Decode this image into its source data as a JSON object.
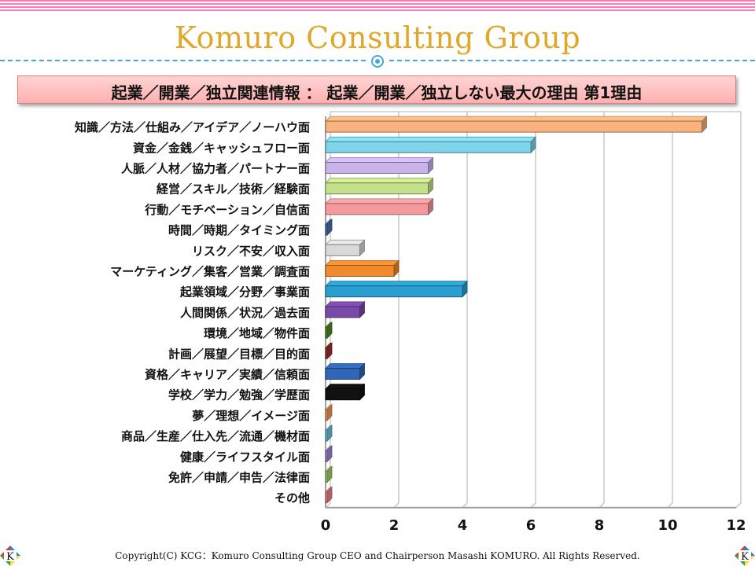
{
  "header": {
    "brand": "Komuro Consulting Group",
    "heading": "起業／開業／独立関連情報 ： 起業／開業／独立しない最大の理由 第1理由"
  },
  "footer": {
    "copyright": "Copyright(C) KCG：Komuro Consulting Group CEO and Chairperson Masashi KOMURO. All Rights Reserved.",
    "logo_letter": "K"
  },
  "colors": {
    "brand_gold": "#e0a82a",
    "divider_blue": "#3fa9dd",
    "heading_bg": "#ffc4c4"
  },
  "chart_data": {
    "type": "bar",
    "orientation": "horizontal",
    "title": "",
    "xlabel": "",
    "ylabel": "",
    "xlim": [
      0,
      12
    ],
    "xticks": [
      0,
      2,
      4,
      6,
      8,
      10,
      12
    ],
    "grid": true,
    "legend": "none",
    "categories": [
      "知識／方法／仕組み／アイデア／ノーハウ面",
      "資金／金銭／キャッシュフロー面",
      "人脈／人材／協力者／パートナー面",
      "経営／スキル／技術／経験面",
      "行動／モチベーション／自信面",
      "時間／時期／タイミング面",
      "リスク／不安／収入面",
      "マーケティング／集客／営業／調査面",
      "起業領域／分野／事業面",
      "人間関係／状況／過去面",
      "環境／地域／物件面",
      "計画／展望／目標／目的面",
      "資格／キャリア／実績／信頼面",
      "学校／学力／勉強／学歴面",
      "夢／理想／イメージ面",
      "商品／生産／仕入先／流通／機材面",
      "健康／ライフスタイル面",
      "免許／申請／申告／法律面",
      "その他"
    ],
    "values": [
      11,
      6,
      3,
      3,
      3,
      0,
      1,
      2,
      4,
      1,
      0,
      0,
      1,
      1,
      0,
      0,
      0,
      0,
      0
    ],
    "colors": [
      "#f9b27d",
      "#7fd3ea",
      "#c9b3e8",
      "#c4e08a",
      "#f49a9e",
      "#4f6fb3",
      "#d9d9d9",
      "#f08a2c",
      "#2b9fcf",
      "#7a4aa8",
      "#5a8a2a",
      "#a03030",
      "#2f66b8",
      "#111111",
      "#f6a060",
      "#6fc6e0",
      "#a58bd6",
      "#a8d070",
      "#f08a8a"
    ]
  }
}
